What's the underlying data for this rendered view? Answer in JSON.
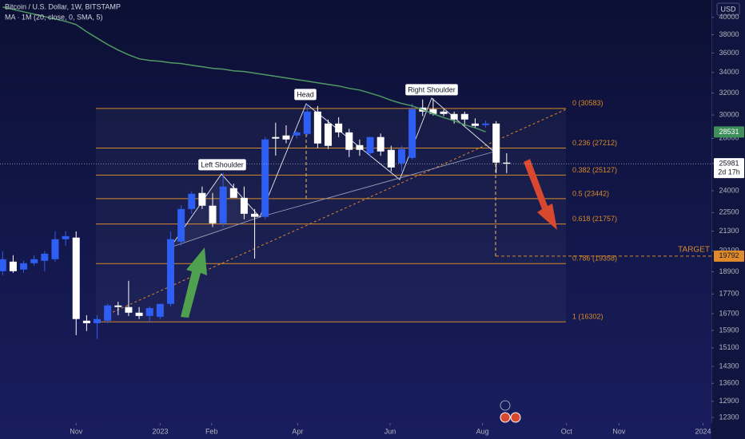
{
  "header": {
    "title": "Bitcoin / U.S. Dollar, 1W, BITSTAMP",
    "indicator": "MA · 1M (20, close, 0, SMA, 5)"
  },
  "chart_data": {
    "type": "candlestick",
    "x": [
      0,
      1,
      2,
      3,
      4,
      5,
      6,
      7,
      8,
      9,
      10,
      11,
      12,
      13,
      14,
      15,
      16,
      17,
      18,
      19,
      20,
      21,
      22,
      23,
      24,
      25,
      26,
      27,
      28,
      29,
      30,
      31,
      32,
      33,
      34,
      35,
      36,
      37,
      38,
      39,
      40,
      41,
      42,
      43,
      44,
      45,
      46,
      47,
      48
    ],
    "open": [
      18930,
      19470,
      19020,
      19380,
      19520,
      19610,
      20800,
      20900,
      16360,
      16240,
      16360,
      17110,
      17030,
      16750,
      16590,
      16550,
      17190,
      20650,
      22740,
      23840,
      22960,
      21800,
      24180,
      23500,
      22420,
      22220,
      28110,
      28240,
      28240,
      28370,
      30300,
      29250,
      29250,
      28500,
      27450,
      26810,
      28110,
      27070,
      26010,
      26440,
      30660,
      30520,
      30300,
      30090,
      30090,
      29250,
      29120,
      29250,
      26070
    ],
    "high": [
      20080,
      19840,
      19520,
      19840,
      20080,
      21290,
      21290,
      21290,
      16630,
      16630,
      17190,
      17300,
      18400,
      17030,
      17070,
      17190,
      21290,
      23000,
      23960,
      24290,
      23840,
      25280,
      24500,
      24290,
      22740,
      28110,
      29320,
      29100,
      28600,
      31000,
      30800,
      29600,
      29800,
      28800,
      27900,
      28100,
      28400,
      27400,
      27400,
      31000,
      31400,
      31500,
      30500,
      30300,
      30300,
      29700,
      29500,
      29460,
      26800
    ],
    "low": [
      18710,
      18840,
      18840,
      19240,
      18930,
      19470,
      20410,
      15680,
      15870,
      15500,
      16240,
      16630,
      16590,
      16440,
      16320,
      16440,
      17070,
      20410,
      22420,
      22740,
      21560,
      21560,
      23500,
      22060,
      19650,
      22060,
      26620,
      27600,
      28000,
      28240,
      27200,
      27130,
      28100,
      26500,
      26600,
      26500,
      26600,
      25400,
      25400,
      26300,
      29900,
      29950,
      29900,
      29250,
      29050,
      28900,
      28900,
      25280,
      25280
    ],
    "close": [
      19610,
      18930,
      19380,
      19610,
      19930,
      20800,
      20990,
      16440,
      16240,
      16440,
      17110,
      17030,
      16750,
      16590,
      16980,
      17190,
      20800,
      22740,
      23780,
      22960,
      21800,
      24290,
      23500,
      22420,
      22220,
      27910,
      27980,
      27910,
      28500,
      30300,
      27580,
      27390,
      28500,
      27070,
      27070,
      28110,
      26940,
      25700,
      27130,
      30520,
      30300,
      30090,
      30090,
      29600,
      29600,
      29050,
      29250,
      26070,
      25981
    ],
    "up_color": "#2e5ff2",
    "down_color": "#ffffff",
    "ma_values": [
      41240,
      40950,
      40660,
      40380,
      40090,
      39810,
      39530,
      39160,
      38340,
      37620,
      36930,
      36330,
      35820,
      35400,
      35230,
      35150,
      34990,
      34910,
      34740,
      34580,
      34420,
      34340,
      34170,
      34100,
      33940,
      33780,
      33620,
      33460,
      33300,
      33150,
      32990,
      32830,
      32680,
      32450,
      32290,
      31990,
      31690,
      31320,
      31040,
      30820,
      30470,
      30110,
      29770,
      29490,
      29150,
      28880,
      28540,
      null,
      null
    ],
    "ma_color": "#4f9a64",
    "xlim": [
      -0.25,
      67.5
    ],
    "xticks": [
      {
        "value": 7,
        "label": "Nov"
      },
      {
        "value": 15,
        "label": "2023"
      },
      {
        "value": 19.9,
        "label": "Feb"
      },
      {
        "value": 28.1,
        "label": "Apr"
      },
      {
        "value": 36.9,
        "label": "Jun"
      },
      {
        "value": 45.7,
        "label": "Aug"
      },
      {
        "value": 53.7,
        "label": "Oct"
      },
      {
        "value": 58.7,
        "label": "Nov"
      },
      {
        "value": 66.7,
        "label": "2024"
      }
    ],
    "ylim": [
      12100,
      42100
    ],
    "log_scale": true,
    "y_unit": "USD",
    "yticks": [
      40000,
      38000,
      36000,
      34000,
      32000,
      30000,
      28000,
      26000,
      24000,
      22500,
      21300,
      20100,
      18900,
      17700,
      16700,
      15900,
      15100,
      14300,
      13600,
      12900,
      12300
    ],
    "fib_color": "#d8892a",
    "fib_levels": [
      {
        "value": 30583,
        "label": "0 (30583)"
      },
      {
        "value": 27212,
        "label": "0.236 (27212)"
      },
      {
        "value": 25127,
        "label": "0.382 (25127)"
      },
      {
        "value": 23442,
        "label": "0.5 (23442)"
      },
      {
        "value": 21757,
        "label": "0.618 (21757)"
      },
      {
        "value": 19358,
        "label": "0.786 (19358)"
      },
      {
        "value": 16302,
        "label": "1 (16302)"
      }
    ],
    "annotations": [
      "Left Shoulder",
      "Head",
      "Right Shoulder"
    ],
    "target": {
      "label": "TARGET",
      "value": 19792
    },
    "price_tags": {
      "ma": 28531,
      "current": {
        "value": 25981,
        "countdown": "2d 17h"
      }
    }
  }
}
